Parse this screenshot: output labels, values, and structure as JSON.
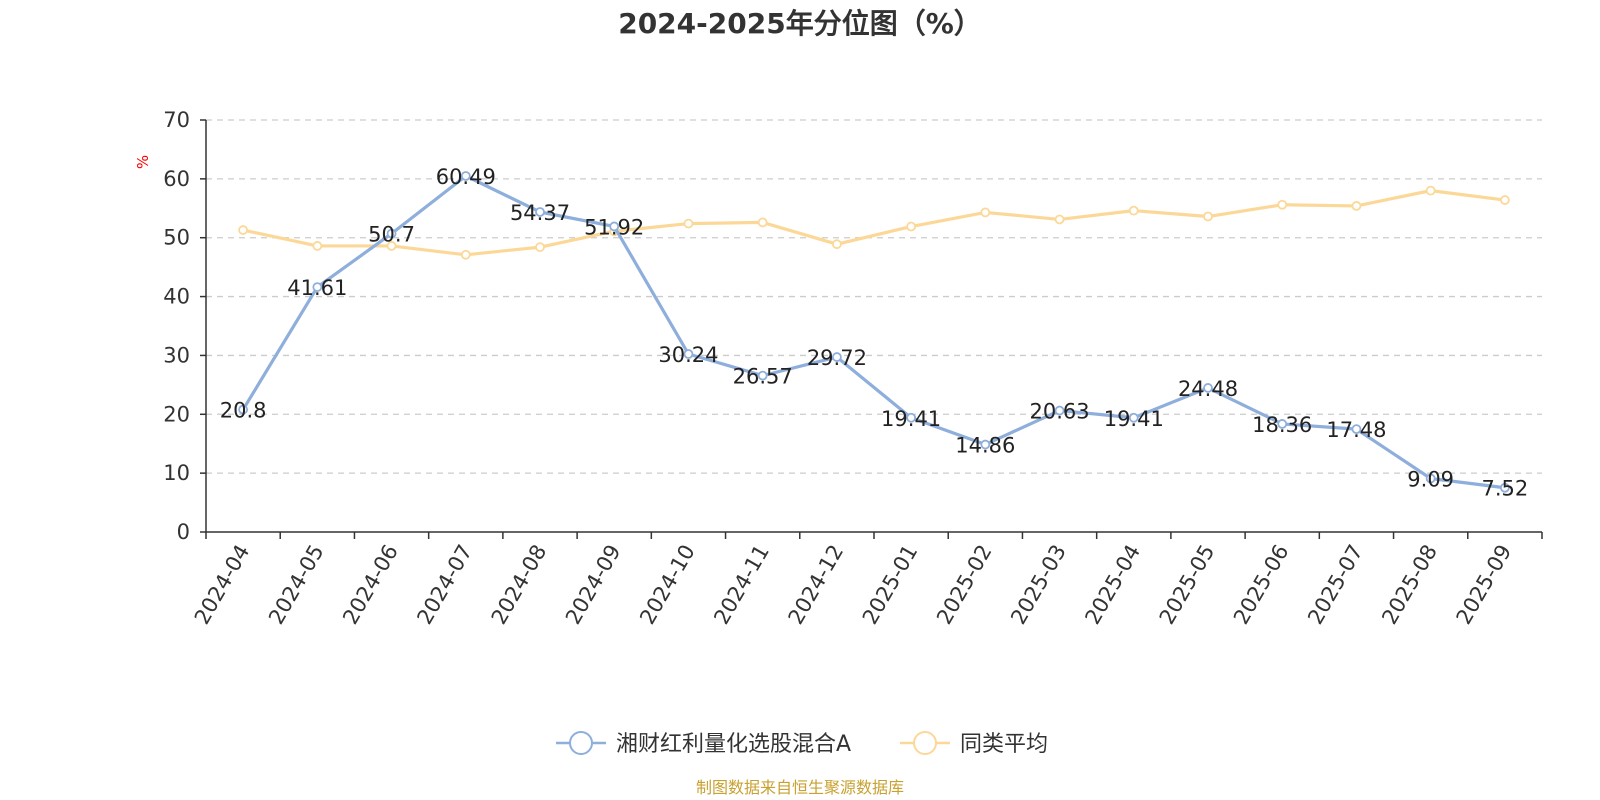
{
  "chart_data": {
    "type": "line",
    "title": "2024-2025年分位图（%）",
    "ylabel": "%",
    "ylim": [
      0,
      70
    ],
    "yticks": [
      0,
      10,
      20,
      30,
      40,
      50,
      60,
      70
    ],
    "grid": true,
    "legend_position": "bottom-center",
    "categories": [
      "2024-04",
      "2024-05",
      "2024-06",
      "2024-07",
      "2024-08",
      "2024-09",
      "2024-10",
      "2024-11",
      "2024-12",
      "2025-01",
      "2025-02",
      "2025-03",
      "2025-04",
      "2025-05",
      "2025-06",
      "2025-07",
      "2025-08",
      "2025-09"
    ],
    "series": [
      {
        "name": "湘财红利量化选股混合A",
        "color": "#8eaedb",
        "values": [
          20.8,
          41.61,
          50.7,
          60.49,
          54.37,
          51.92,
          30.24,
          26.57,
          29.72,
          19.41,
          14.86,
          20.63,
          19.41,
          24.48,
          18.36,
          17.48,
          9.09,
          7.52
        ],
        "labels": [
          "20.8",
          "41.61",
          "50.7",
          "60.49",
          "54.37",
          "51.92",
          "30.24",
          "26.57",
          "29.72",
          "19.41",
          "14.86",
          "20.63",
          "19.41",
          "24.48",
          "18.36",
          "17.48",
          "9.09",
          "7.52"
        ]
      },
      {
        "name": "同类平均",
        "color": "#fcd898",
        "values": [
          51.3,
          48.6,
          48.6,
          47.1,
          48.4,
          51.1,
          52.4,
          52.6,
          48.9,
          51.9,
          54.3,
          53.1,
          54.6,
          53.6,
          55.6,
          55.4,
          58.0,
          56.4
        ]
      }
    ],
    "source": "制图数据来自恒生聚源数据库"
  }
}
